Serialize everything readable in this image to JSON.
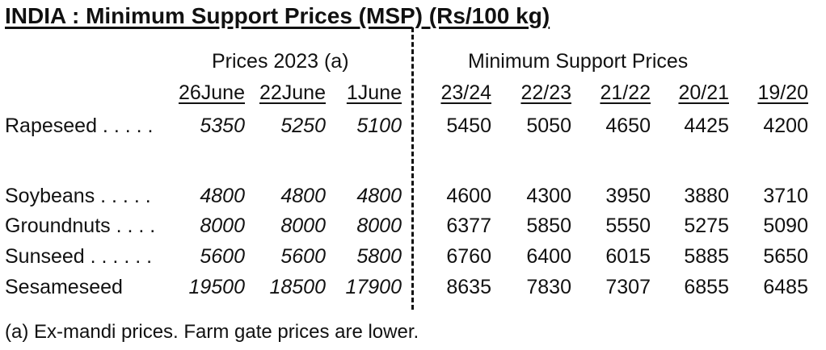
{
  "title": "INDIA : Minimum Support Prices (MSP) (Rs/100 kg)",
  "group_headers": {
    "prices": "Prices 2023 (a)",
    "msp": "Minimum Support Prices"
  },
  "columns": [
    "26June",
    "22June",
    "1June",
    "23/24",
    "22/23",
    "21/22",
    "20/21",
    "19/20"
  ],
  "rows": [
    {
      "label": "Rapeseed . . . . .",
      "values": [
        "5350",
        "5250",
        "5100",
        "5450",
        "5050",
        "4650",
        "4425",
        "4200"
      ]
    },
    {
      "label": "Soybeans . . . . .",
      "values": [
        "4800",
        "4800",
        "4800",
        "4600",
        "4300",
        "3950",
        "3880",
        "3710"
      ]
    },
    {
      "label": "Groundnuts . . . .",
      "values": [
        "8000",
        "8000",
        "8000",
        "6377",
        "5850",
        "5550",
        "5275",
        "5090"
      ]
    },
    {
      "label": "Sunseed . . . . . .",
      "values": [
        "5600",
        "5600",
        "5800",
        "6760",
        "6400",
        "6015",
        "5885",
        "5650"
      ]
    },
    {
      "label": "Sesameseed",
      "values": [
        "19500",
        "18500",
        "17900",
        "8635",
        "7830",
        "7307",
        "6855",
        "6485"
      ]
    }
  ],
  "footnote": "(a) Ex-mandi prices. Farm gate prices are lower."
}
